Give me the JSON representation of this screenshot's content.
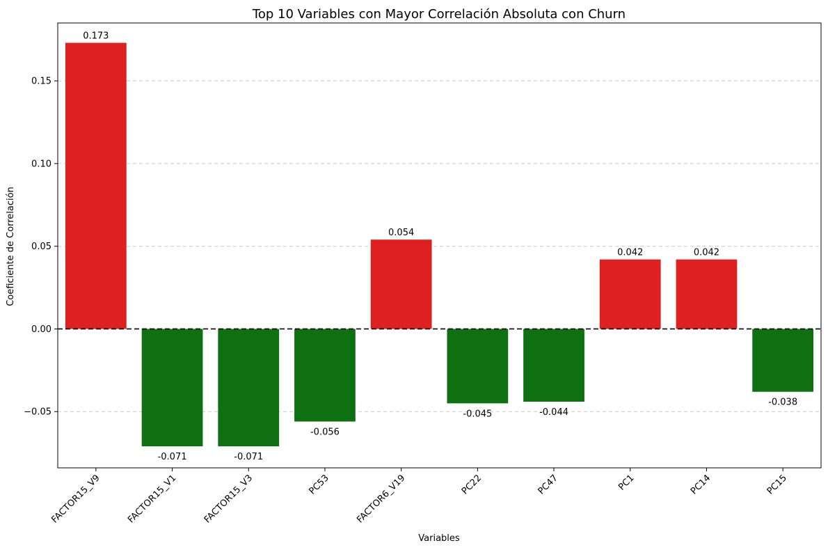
{
  "chart_data": {
    "type": "bar",
    "title": "Top 10 Variables con Mayor Correlación Absoluta con Churn",
    "xlabel": "Variables",
    "ylabel": "Coeficiente de Correlación",
    "categories": [
      "FACTOR15_V9",
      "FACTOR15_V1",
      "FACTOR15_V3",
      "PC53",
      "FACTOR6_V19",
      "PC22",
      "PC47",
      "PC1",
      "PC14",
      "PC15"
    ],
    "values": [
      0.173,
      -0.071,
      -0.071,
      -0.056,
      0.054,
      -0.045,
      -0.044,
      0.042,
      0.042,
      -0.038
    ],
    "value_labels": [
      "0.173",
      "-0.071",
      "-0.071",
      "-0.056",
      "0.054",
      "-0.045",
      "-0.044",
      "0.042",
      "0.042",
      "-0.038"
    ],
    "ylim": [
      -0.084,
      0.185
    ],
    "yticks": [
      -0.05,
      0.0,
      0.05,
      0.1,
      0.15
    ],
    "ytick_labels": [
      "−0.05",
      "0.00",
      "0.05",
      "0.10",
      "0.15"
    ],
    "grid": "y-dashed",
    "zero_line": "dashed",
    "colors": {
      "positive": "#df2020",
      "negative": "#0f7012",
      "grid": "#c8c8c8"
    }
  }
}
